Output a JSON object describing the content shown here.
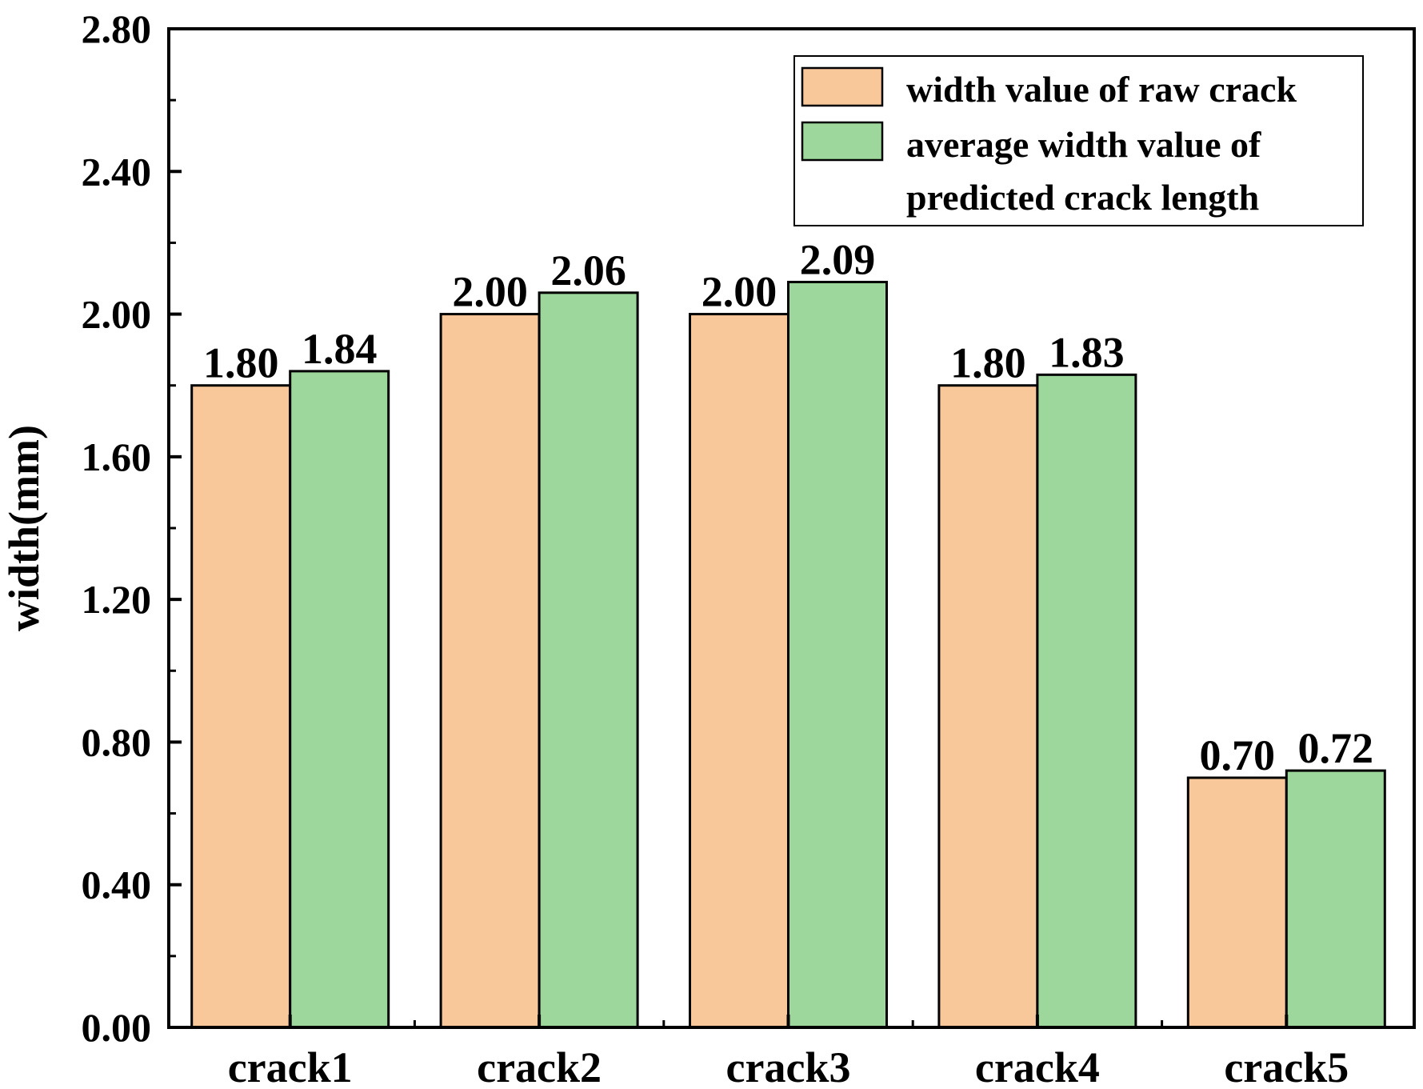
{
  "chart_data": {
    "type": "bar",
    "title": "",
    "xlabel": "",
    "ylabel": "width(mm)",
    "ylim": [
      0,
      2.8
    ],
    "yticks": [
      "0.00",
      "0.40",
      "0.80",
      "1.20",
      "1.60",
      "2.00",
      "2.40",
      "2.80"
    ],
    "categories": [
      "crack1",
      "crack2",
      "crack3",
      "crack4",
      "crack5"
    ],
    "series": [
      {
        "name": "width value of raw crack",
        "color": "#F9C89A",
        "values": [
          1.8,
          2.0,
          2.0,
          1.8,
          0.7
        ],
        "labels": [
          "1.80",
          "2.00",
          "2.00",
          "1.80",
          "0.70"
        ]
      },
      {
        "name": "average width value of predicted crack length",
        "legend_lines": [
          "average width value of",
          "predicted crack length"
        ],
        "color": "#9DD79B",
        "values": [
          1.84,
          2.06,
          2.09,
          1.83,
          0.72
        ],
        "labels": [
          "1.84",
          "2.06",
          "2.09",
          "1.83",
          "0.72"
        ]
      }
    ],
    "legend_position": "top-right",
    "grid": false
  }
}
